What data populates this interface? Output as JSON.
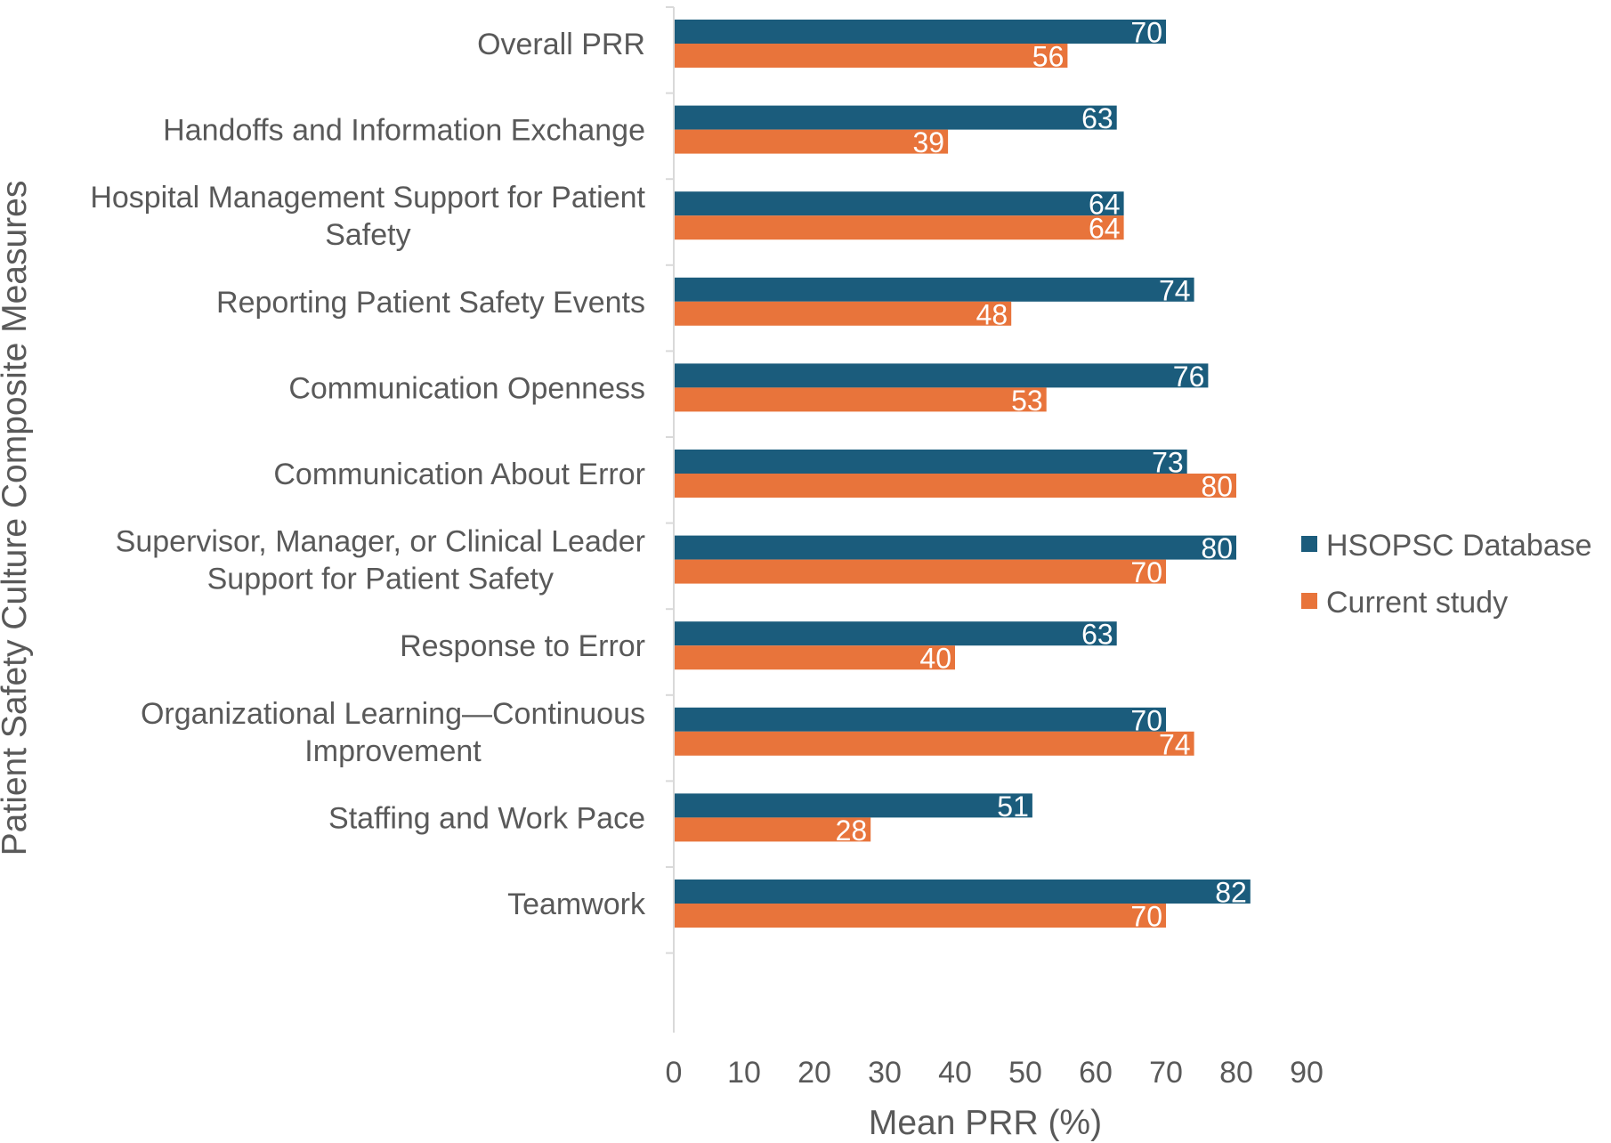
{
  "chart_data": {
    "type": "bar",
    "orientation": "horizontal",
    "categories": [
      [
        "Overall PRR"
      ],
      [
        "Handoffs and Information Exchange"
      ],
      [
        "Hospital Management Support for Patient",
        "Safety"
      ],
      [
        "Reporting Patient Safety Events"
      ],
      [
        "Communication Openness"
      ],
      [
        "Communication About Error"
      ],
      [
        "Supervisor, Manager, or Clinical Leader",
        "Support for Patient Safety"
      ],
      [
        "Response to Error"
      ],
      [
        "Organizational Learning—Continuous",
        "Improvement"
      ],
      [
        "Staffing and Work Pace"
      ],
      [
        "Teamwork"
      ]
    ],
    "series": [
      {
        "name": "HSOPSC Database",
        "color": "#1b5c7c",
        "values": [
          70,
          63,
          64,
          74,
          76,
          73,
          80,
          63,
          70,
          51,
          82
        ]
      },
      {
        "name": "Current study",
        "color": "#e8743b",
        "values": [
          56,
          39,
          64,
          48,
          53,
          80,
          70,
          40,
          74,
          28,
          70
        ]
      }
    ],
    "xlabel": "Mean PRR (%)",
    "ylabel": "Patient Safety Culture Composite Measures",
    "xlim": [
      0,
      90
    ],
    "xticks": [
      0,
      10,
      20,
      30,
      40,
      50,
      60,
      70,
      80,
      90
    ],
    "grid": false,
    "data_labels": true,
    "legend_position": "right"
  }
}
